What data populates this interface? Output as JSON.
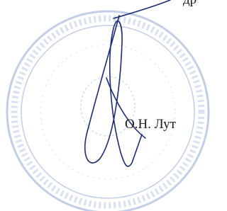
{
  "document": {
    "top_text_fragment": "др",
    "signer_name": "О.Н. Лут"
  }
}
